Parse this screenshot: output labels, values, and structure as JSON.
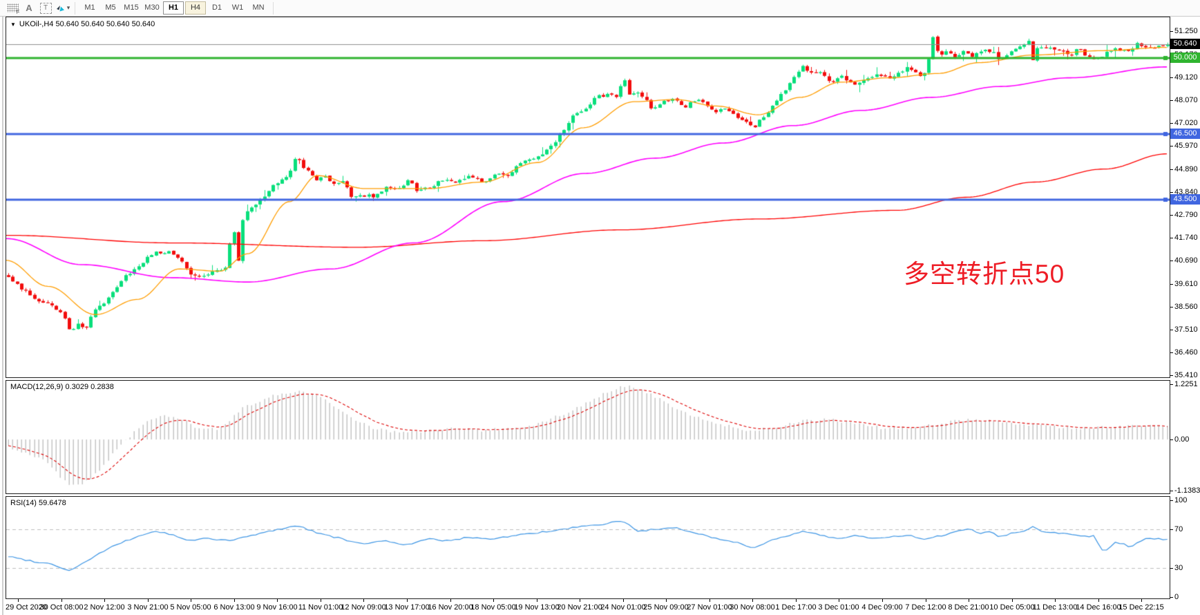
{
  "toolbar": {
    "tools": [
      {
        "name": "chart-grid-tool",
        "label": "F"
      },
      {
        "name": "font-tool",
        "label": "A"
      },
      {
        "name": "text-label-tool",
        "label": "T"
      },
      {
        "name": "arrows-tool",
        "label": ""
      }
    ],
    "arrows_dropdown_caret": "▾",
    "timeframes": [
      {
        "label": "M1"
      },
      {
        "label": "M5"
      },
      {
        "label": "M15"
      },
      {
        "label": "M30"
      },
      {
        "label": "H1",
        "state": "hover"
      },
      {
        "label": "H4",
        "state": "active"
      },
      {
        "label": "D1"
      },
      {
        "label": "W1"
      },
      {
        "label": "MN"
      }
    ]
  },
  "main_chart": {
    "title": "UKOil-,H4  50.640 50.640 50.640 50.640",
    "dropdown_icon": "▼",
    "annotation": {
      "text": "多空转折点50",
      "color": "#ee1c25"
    }
  },
  "price_scale": {
    "ticks": [
      "51.250",
      "50.170",
      "49.120",
      "48.070",
      "47.020",
      "45.970",
      "44.890",
      "43.840",
      "42.790",
      "41.740",
      "40.690",
      "39.610",
      "38.560",
      "37.510",
      "36.460",
      "35.410"
    ],
    "badges": [
      {
        "label": "50.640",
        "price": 50.64,
        "color": "#000000"
      },
      {
        "label": "50.000",
        "price": 50.0,
        "color": "#2fb42f"
      },
      {
        "label": "46.500",
        "price": 46.5,
        "color": "#4066e0"
      },
      {
        "label": "43.500",
        "price": 43.5,
        "color": "#4066e0"
      }
    ]
  },
  "macd_panel": {
    "label": "MACD(12,26,9) 0.3029 0.2838",
    "scale": [
      {
        "label": "1.2251",
        "value": 1.2251
      },
      {
        "label": "0.00",
        "value": 0
      },
      {
        "label": "-1.1383",
        "value": -1.1383
      }
    ]
  },
  "rsi_panel": {
    "label": "RSI(14) 59.6478",
    "scale": [
      {
        "label": "100",
        "value": 100
      },
      {
        "label": "70",
        "value": 70
      },
      {
        "label": "30",
        "value": 30
      },
      {
        "label": "0",
        "value": 0
      }
    ]
  },
  "time_axis": {
    "labels": [
      "29 Oct 2020",
      "30 Oct 08:00",
      "2 Nov 12:00",
      "3 Nov 21:00",
      "5 Nov 05:00",
      "6 Nov 13:00",
      "9 Nov 16:00",
      "11 Nov 01:00",
      "12 Nov 09:00",
      "13 Nov 17:00",
      "16 Nov 20:00",
      "18 Nov 05:00",
      "19 Nov 13:00",
      "20 Nov 21:00",
      "24 Nov 01:00",
      "25 Nov 09:00",
      "27 Nov 01:00",
      "30 Nov 08:00",
      "1 Dec 17:00",
      "3 Dec 01:00",
      "4 Dec 09:00",
      "7 Dec 12:00",
      "8 Dec 21:00",
      "10 Dec 05:00",
      "11 Dec 13:00",
      "14 Dec 16:00",
      "15 Dec 22:15"
    ]
  },
  "chart_data": {
    "type": "candlestick",
    "symbol": "UKOil-",
    "timeframe": "H4",
    "current_ohlc": {
      "open": 50.64,
      "high": 50.64,
      "low": 50.64,
      "close": 50.64
    },
    "price_range": [
      35.41,
      51.25
    ],
    "bars": 268,
    "candle_colors": {
      "bull": "#0adf7c",
      "bear": "#f20d0d"
    },
    "close_path": [
      [
        0,
        39.9
      ],
      [
        0.018,
        39.1
      ],
      [
        0.036,
        38.6
      ],
      [
        0.048,
        38.2
      ],
      [
        0.052,
        37.45
      ],
      [
        0.061,
        37.8
      ],
      [
        0.067,
        37.5
      ],
      [
        0.074,
        38.4
      ],
      [
        0.086,
        38.9
      ],
      [
        0.098,
        39.8
      ],
      [
        0.113,
        40.5
      ],
      [
        0.125,
        41
      ],
      [
        0.14,
        41.15
      ],
      [
        0.15,
        40.6
      ],
      [
        0.159,
        40
      ],
      [
        0.172,
        40.05
      ],
      [
        0.187,
        40.35
      ],
      [
        0.194,
        42.3
      ],
      [
        0.198,
        40.4
      ],
      [
        0.203,
        42.9
      ],
      [
        0.214,
        43.3
      ],
      [
        0.223,
        43.8
      ],
      [
        0.232,
        44.3
      ],
      [
        0.241,
        44.6
      ],
      [
        0.249,
        45.5
      ],
      [
        0.256,
        44.9
      ],
      [
        0.265,
        44.4
      ],
      [
        0.273,
        44.6
      ],
      [
        0.281,
        44.2
      ],
      [
        0.288,
        44.35
      ],
      [
        0.297,
        43.6
      ],
      [
        0.304,
        43.7
      ],
      [
        0.315,
        43.65
      ],
      [
        0.326,
        44.1
      ],
      [
        0.336,
        43.9
      ],
      [
        0.345,
        44.35
      ],
      [
        0.354,
        43.85
      ],
      [
        0.363,
        44.05
      ],
      [
        0.375,
        44.4
      ],
      [
        0.386,
        44.25
      ],
      [
        0.398,
        44.55
      ],
      [
        0.41,
        44.3
      ],
      [
        0.419,
        44.65
      ],
      [
        0.431,
        44.6
      ],
      [
        0.44,
        45.1
      ],
      [
        0.449,
        45.35
      ],
      [
        0.461,
        45.5
      ],
      [
        0.47,
        46.1
      ],
      [
        0.479,
        46.6
      ],
      [
        0.488,
        47.4
      ],
      [
        0.497,
        47.6
      ],
      [
        0.507,
        48.2
      ],
      [
        0.517,
        48.35
      ],
      [
        0.526,
        48.1
      ],
      [
        0.53,
        49.3
      ],
      [
        0.535,
        48.3
      ],
      [
        0.544,
        48.5
      ],
      [
        0.556,
        47.6
      ],
      [
        0.565,
        48
      ],
      [
        0.574,
        48.2
      ],
      [
        0.583,
        47.7
      ],
      [
        0.592,
        48.1
      ],
      [
        0.601,
        48
      ],
      [
        0.609,
        47.5
      ],
      [
        0.618,
        47.7
      ],
      [
        0.627,
        47.3
      ],
      [
        0.636,
        47.1
      ],
      [
        0.643,
        46.8
      ],
      [
        0.651,
        47.3
      ],
      [
        0.66,
        47.8
      ],
      [
        0.669,
        48.5
      ],
      [
        0.678,
        49.1
      ],
      [
        0.685,
        49.7
      ],
      [
        0.693,
        49.3
      ],
      [
        0.702,
        49.4
      ],
      [
        0.71,
        48.9
      ],
      [
        0.719,
        49.2
      ],
      [
        0.728,
        48.8
      ],
      [
        0.737,
        49
      ],
      [
        0.748,
        49.25
      ],
      [
        0.758,
        49.1
      ],
      [
        0.767,
        49.3
      ],
      [
        0.776,
        49.6
      ],
      [
        0.785,
        49.2
      ],
      [
        0.791,
        49.3
      ],
      [
        0.798,
        51
      ],
      [
        0.803,
        50.1
      ],
      [
        0.81,
        50.3
      ],
      [
        0.817,
        50
      ],
      [
        0.825,
        50.35
      ],
      [
        0.832,
        50.1
      ],
      [
        0.841,
        50.4
      ],
      [
        0.849,
        50.3
      ],
      [
        0.856,
        49.9
      ],
      [
        0.863,
        50.3
      ],
      [
        0.873,
        50.5
      ],
      [
        0.88,
        50.9
      ],
      [
        0.884,
        49.95
      ],
      [
        0.889,
        50.6
      ],
      [
        0.898,
        50.45
      ],
      [
        0.907,
        50.3
      ],
      [
        0.916,
        50.15
      ],
      [
        0.923,
        50.4
      ],
      [
        0.932,
        50.05
      ],
      [
        0.941,
        49.95
      ],
      [
        0.948,
        50.3
      ],
      [
        0.957,
        50.45
      ],
      [
        0.966,
        50.3
      ],
      [
        0.974,
        50.7
      ],
      [
        0.981,
        50.45
      ],
      [
        0.988,
        50.55
      ],
      [
        0.995,
        50.6
      ],
      [
        1,
        50.64
      ]
    ],
    "horizontal_lines": [
      {
        "price": 50.64,
        "color": "#8f8f8f",
        "width": 1,
        "role": "current-price-line"
      },
      {
        "price": 50.0,
        "color": "#2fb42f",
        "width": 3,
        "role": "resistance-line"
      },
      {
        "price": 46.5,
        "color": "#4066e0",
        "width": 3,
        "role": "support-line"
      },
      {
        "price": 43.5,
        "color": "#4066e0",
        "width": 3,
        "role": "support-line"
      }
    ],
    "moving_averages": [
      {
        "name": "slow-ma",
        "color": "#ff0000",
        "width": 1.3,
        "path": [
          [
            0,
            41.85
          ],
          [
            0.143,
            41.5
          ],
          [
            0.303,
            41.3
          ],
          [
            0.41,
            41.6
          ],
          [
            0.529,
            42.1
          ],
          [
            0.648,
            42.6
          ],
          [
            0.767,
            43
          ],
          [
            0.827,
            43.6
          ],
          [
            0.886,
            44.3
          ],
          [
            0.946,
            44.9
          ],
          [
            1,
            45.6
          ]
        ]
      },
      {
        "name": "medium-ma",
        "color": "#ff00ff",
        "width": 1.6,
        "path": [
          [
            0,
            41.7
          ],
          [
            0.065,
            40.5
          ],
          [
            0.143,
            39.9
          ],
          [
            0.208,
            39.7
          ],
          [
            0.279,
            40.3
          ],
          [
            0.351,
            41.5
          ],
          [
            0.428,
            43.4
          ],
          [
            0.499,
            44.7
          ],
          [
            0.559,
            45.4
          ],
          [
            0.618,
            46.1
          ],
          [
            0.678,
            46.9
          ],
          [
            0.737,
            47.6
          ],
          [
            0.797,
            48.2
          ],
          [
            0.856,
            48.7
          ],
          [
            0.916,
            49.1
          ],
          [
            1,
            49.6
          ]
        ]
      },
      {
        "name": "fast-ma",
        "color": "#ff9d00",
        "width": 1.3,
        "path": [
          [
            0,
            40.7
          ],
          [
            0.036,
            39.5
          ],
          [
            0.077,
            38.2
          ],
          [
            0.113,
            38.9
          ],
          [
            0.149,
            40.3
          ],
          [
            0.184,
            40.2
          ],
          [
            0.208,
            41
          ],
          [
            0.244,
            43.4
          ],
          [
            0.268,
            44.6
          ],
          [
            0.309,
            44
          ],
          [
            0.363,
            44
          ],
          [
            0.41,
            44.3
          ],
          [
            0.458,
            45.2
          ],
          [
            0.497,
            46.8
          ],
          [
            0.541,
            48
          ],
          [
            0.577,
            48.1
          ],
          [
            0.612,
            47.8
          ],
          [
            0.648,
            47.4
          ],
          [
            0.684,
            48.2
          ],
          [
            0.719,
            48.9
          ],
          [
            0.761,
            49.1
          ],
          [
            0.803,
            49.3
          ],
          [
            0.838,
            49.8
          ],
          [
            0.886,
            50.15
          ],
          [
            0.945,
            50.35
          ],
          [
            1,
            50.5
          ]
        ]
      }
    ],
    "macd": {
      "params": "12,26,9",
      "current": {
        "macd": 0.3029,
        "signal": 0.2838
      },
      "range": [
        -1.1383,
        1.2251
      ],
      "histogram_color": "#c4c4c4",
      "signal_color": "#dd0000",
      "histogram_path": [
        [
          0,
          -0.15
        ],
        [
          0.03,
          -0.45
        ],
        [
          0.054,
          -1.05
        ],
        [
          0.071,
          -0.9
        ],
        [
          0.089,
          -0.35
        ],
        [
          0.113,
          0.3
        ],
        [
          0.131,
          0.55
        ],
        [
          0.149,
          0.45
        ],
        [
          0.167,
          0.2
        ],
        [
          0.184,
          0.25
        ],
        [
          0.202,
          0.7
        ],
        [
          0.232,
          1
        ],
        [
          0.25,
          1.08
        ],
        [
          0.268,
          0.95
        ],
        [
          0.291,
          0.55
        ],
        [
          0.315,
          0.25
        ],
        [
          0.339,
          0.15
        ],
        [
          0.363,
          0.2
        ],
        [
          0.386,
          0.25
        ],
        [
          0.41,
          0.2
        ],
        [
          0.434,
          0.25
        ],
        [
          0.458,
          0.35
        ],
        [
          0.482,
          0.6
        ],
        [
          0.505,
          0.9
        ],
        [
          0.529,
          1.2
        ],
        [
          0.547,
          1.1
        ],
        [
          0.565,
          0.85
        ],
        [
          0.589,
          0.55
        ],
        [
          0.612,
          0.35
        ],
        [
          0.636,
          0.2
        ],
        [
          0.66,
          0.25
        ],
        [
          0.684,
          0.4
        ],
        [
          0.707,
          0.45
        ],
        [
          0.731,
          0.35
        ],
        [
          0.755,
          0.25
        ],
        [
          0.779,
          0.25
        ],
        [
          0.803,
          0.35
        ],
        [
          0.827,
          0.45
        ],
        [
          0.85,
          0.4
        ],
        [
          0.874,
          0.35
        ],
        [
          0.898,
          0.3
        ],
        [
          0.922,
          0.25
        ],
        [
          0.946,
          0.27
        ],
        [
          0.975,
          0.3
        ],
        [
          1,
          0.3029
        ]
      ]
    },
    "rsi": {
      "period": 14,
      "current": 59.6478,
      "color": "#3b94e4",
      "levels": [
        70,
        30
      ],
      "range": [
        0,
        100
      ],
      "path": [
        [
          0,
          42
        ],
        [
          0.021,
          37
        ],
        [
          0.039,
          34
        ],
        [
          0.051,
          27
        ],
        [
          0.062,
          33
        ],
        [
          0.077,
          44
        ],
        [
          0.095,
          55
        ],
        [
          0.113,
          63
        ],
        [
          0.125,
          68
        ],
        [
          0.14,
          65
        ],
        [
          0.155,
          58
        ],
        [
          0.172,
          61
        ],
        [
          0.19,
          58
        ],
        [
          0.208,
          63
        ],
        [
          0.229,
          69
        ],
        [
          0.249,
          74
        ],
        [
          0.268,
          66
        ],
        [
          0.288,
          60
        ],
        [
          0.303,
          55
        ],
        [
          0.324,
          58
        ],
        [
          0.345,
          54
        ],
        [
          0.363,
          60
        ],
        [
          0.381,
          58
        ],
        [
          0.398,
          62
        ],
        [
          0.416,
          60
        ],
        [
          0.434,
          63
        ],
        [
          0.452,
          66
        ],
        [
          0.47,
          68
        ],
        [
          0.488,
          72
        ],
        [
          0.508,
          74
        ],
        [
          0.529,
          79
        ],
        [
          0.544,
          68
        ],
        [
          0.559,
          70
        ],
        [
          0.577,
          71
        ],
        [
          0.595,
          66
        ],
        [
          0.612,
          60
        ],
        [
          0.627,
          57
        ],
        [
          0.642,
          51
        ],
        [
          0.657,
          58
        ],
        [
          0.672,
          63
        ],
        [
          0.687,
          68
        ],
        [
          0.702,
          64
        ],
        [
          0.716,
          60
        ],
        [
          0.731,
          64
        ],
        [
          0.746,
          60
        ],
        [
          0.761,
          62
        ],
        [
          0.776,
          64
        ],
        [
          0.791,
          59
        ],
        [
          0.806,
          64
        ],
        [
          0.82,
          68
        ],
        [
          0.829,
          71
        ],
        [
          0.838,
          66
        ],
        [
          0.847,
          68
        ],
        [
          0.856,
          62
        ],
        [
          0.865,
          66
        ],
        [
          0.874,
          67
        ],
        [
          0.884,
          73
        ],
        [
          0.892,
          67
        ],
        [
          0.901,
          67
        ],
        [
          0.91,
          66
        ],
        [
          0.919,
          65
        ],
        [
          0.928,
          63
        ],
        [
          0.937,
          63
        ],
        [
          0.945,
          46
        ],
        [
          0.954,
          56
        ],
        [
          0.961,
          56
        ],
        [
          0.967,
          51
        ],
        [
          0.976,
          57
        ],
        [
          0.984,
          61
        ],
        [
          0.993,
          60
        ],
        [
          1,
          59.65
        ]
      ]
    }
  }
}
